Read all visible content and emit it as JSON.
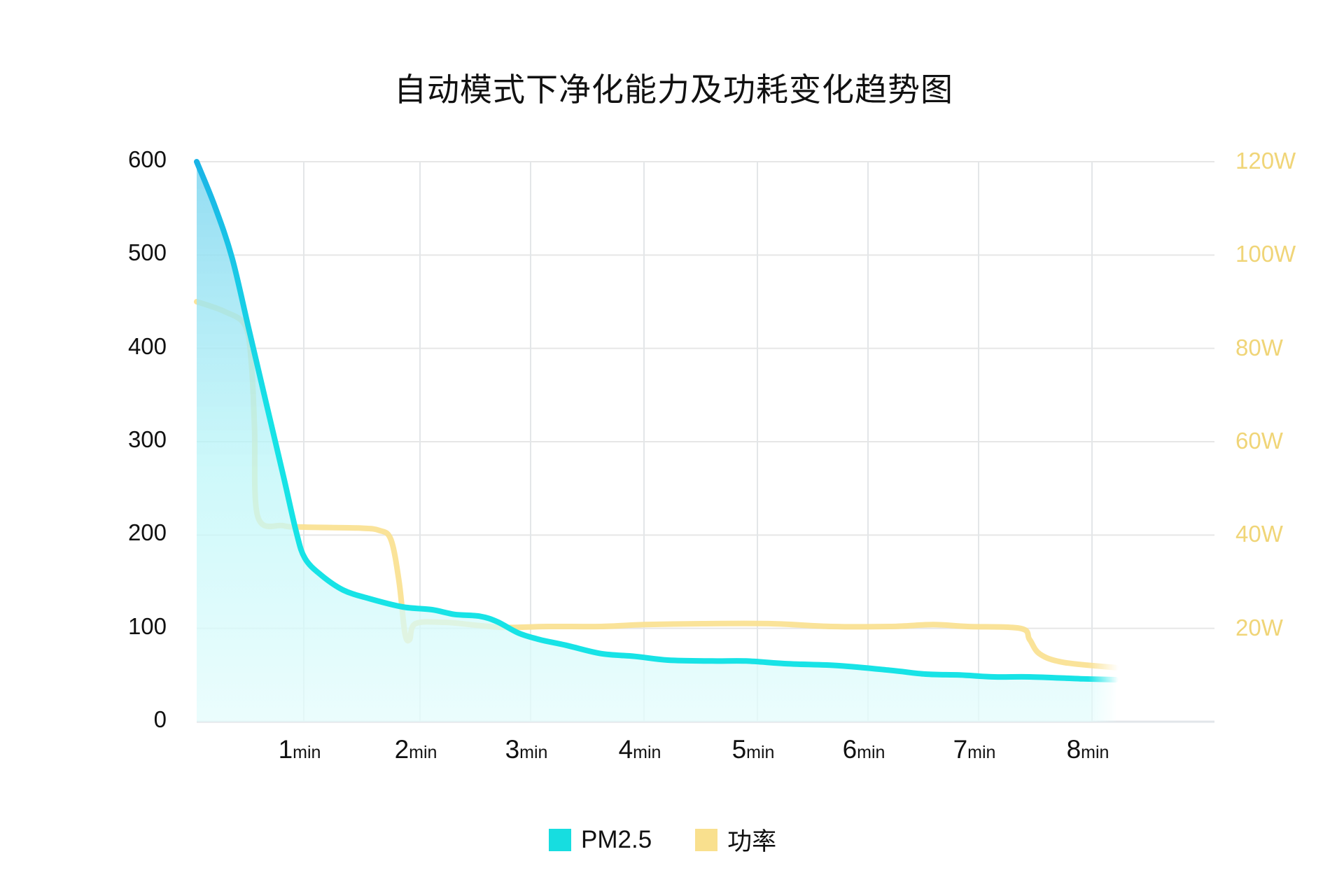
{
  "chart_data": {
    "type": "line",
    "title": "自动模式下净化能力及功耗变化趋势图",
    "xlabel": "",
    "ylabel_left": "",
    "ylabel_right": "",
    "x_ticks": [
      {
        "value": 1,
        "num": "1",
        "unit": "min"
      },
      {
        "value": 2,
        "num": "2",
        "unit": "min"
      },
      {
        "value": 3,
        "num": "3",
        "unit": "min"
      },
      {
        "value": 4,
        "num": "4",
        "unit": "min"
      },
      {
        "value": 5,
        "num": "5",
        "unit": "min"
      },
      {
        "value": 6,
        "num": "6",
        "unit": "min"
      },
      {
        "value": 7,
        "num": "7",
        "unit": "min"
      },
      {
        "value": 8,
        "num": "8",
        "unit": "min"
      }
    ],
    "y_left_ticks": [
      "0",
      "100",
      "200",
      "300",
      "400",
      "500",
      "600"
    ],
    "y_right_ticks": [
      "20W",
      "40W",
      "60W",
      "80W",
      "100W",
      "120W"
    ],
    "ylim_left": [
      0,
      600
    ],
    "ylim_right": [
      0,
      120
    ],
    "xlim": [
      0,
      8.2
    ],
    "grid": true,
    "legend_position": "bottom",
    "series": [
      {
        "name": "PM2.5",
        "axis": "left",
        "color": "#17DDE0",
        "color_top": "#1AB4E6",
        "fill": true,
        "x": [
          0,
          0.17,
          0.33,
          0.49,
          0.65,
          0.81,
          0.93,
          1.01,
          1.15,
          1.34,
          1.56,
          1.85,
          2.11,
          2.31,
          2.54,
          2.7,
          2.89,
          3.08,
          3.31,
          3.62,
          3.92,
          4.21,
          4.6,
          4.9,
          5.28,
          5.74,
          6.21,
          6.52,
          6.83,
          7.14,
          7.45,
          7.9,
          8.21
        ],
        "values": [
          600,
          552,
          497,
          419,
          341,
          263,
          203,
          175,
          157,
          141,
          132,
          123,
          120,
          115,
          113,
          107,
          95,
          88,
          82,
          73,
          70,
          66,
          65,
          65,
          62,
          60,
          55,
          51,
          50,
          48,
          48,
          46,
          45
        ]
      },
      {
        "name": "功率",
        "axis": "right",
        "unit": "W",
        "color": "#F9E08E",
        "fill": false,
        "x": [
          0,
          0.25,
          0.45,
          0.51,
          0.54,
          0.57,
          0.81,
          1.01,
          1.47,
          1.65,
          1.75,
          1.82,
          1.87,
          1.91,
          1.96,
          2.22,
          2.54,
          2.78,
          3.16,
          3.62,
          4.0,
          4.51,
          5.13,
          5.67,
          6.21,
          6.59,
          6.9,
          7.37,
          7.45,
          7.54,
          7.75,
          8.21
        ],
        "values": [
          90,
          88,
          85,
          77,
          63,
          44,
          42,
          41.7,
          41.5,
          41,
          39,
          30,
          19,
          17.6,
          21,
          21.3,
          20.6,
          20.2,
          20.4,
          20.4,
          20.8,
          21,
          21,
          20.4,
          20.4,
          20.8,
          20.4,
          20,
          17.6,
          14.5,
          12.7,
          11.6
        ]
      }
    ]
  },
  "legend": {
    "items": [
      {
        "label": "PM2.5",
        "color": "#17DDE0"
      },
      {
        "label": "功率",
        "color": "#F9E08E"
      }
    ]
  }
}
